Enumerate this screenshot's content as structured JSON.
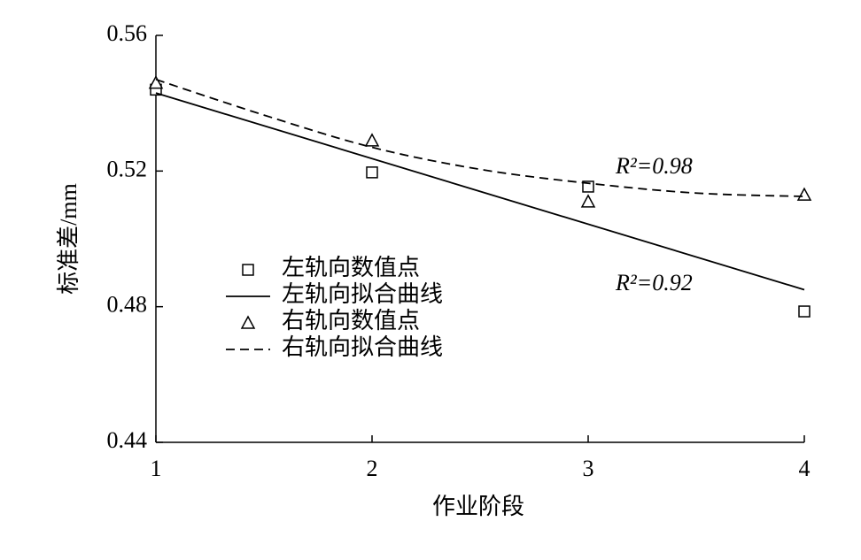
{
  "chart_data": {
    "type": "scatter",
    "x_label": "作业阶段",
    "y_label": "标准差/mm",
    "xlim": [
      1,
      4
    ],
    "xticks": [
      1,
      2,
      3,
      4
    ],
    "ylim": [
      0.44,
      0.56
    ],
    "yticks": [
      {
        "value": 0.44,
        "label": "0.44"
      },
      {
        "value": 0.48,
        "label": "0.48"
      },
      {
        "value": 0.52,
        "label": "0.52"
      },
      {
        "value": 0.56,
        "label": "0.56"
      }
    ],
    "series": [
      {
        "name": "左轨向数值点",
        "kind": "square",
        "color": "#000000",
        "x": [
          1,
          2,
          3,
          4
        ],
        "values": [
          0.544,
          0.5196,
          0.5154,
          0.4786
        ]
      },
      {
        "name": "左轨向拟合曲线",
        "kind": "solid",
        "color": "#000000",
        "x": [
          1,
          4
        ],
        "values": [
          0.543,
          0.485
        ]
      },
      {
        "name": "右轨向数值点",
        "kind": "triangle",
        "color": "#000000",
        "x": [
          1,
          2,
          3,
          4
        ],
        "values": [
          0.546,
          0.529,
          0.511,
          0.513
        ]
      },
      {
        "name": "右轨向拟合曲线",
        "kind": "dashed",
        "color": "#000000",
        "x": [
          1,
          1.5,
          2,
          2.5,
          3,
          3.5,
          4
        ],
        "values": [
          0.547,
          0.5365,
          0.527,
          0.5205,
          0.5164,
          0.5135,
          0.5125
        ]
      }
    ],
    "annotations": [
      "R²=0.98",
      "R²=0.92"
    ]
  }
}
